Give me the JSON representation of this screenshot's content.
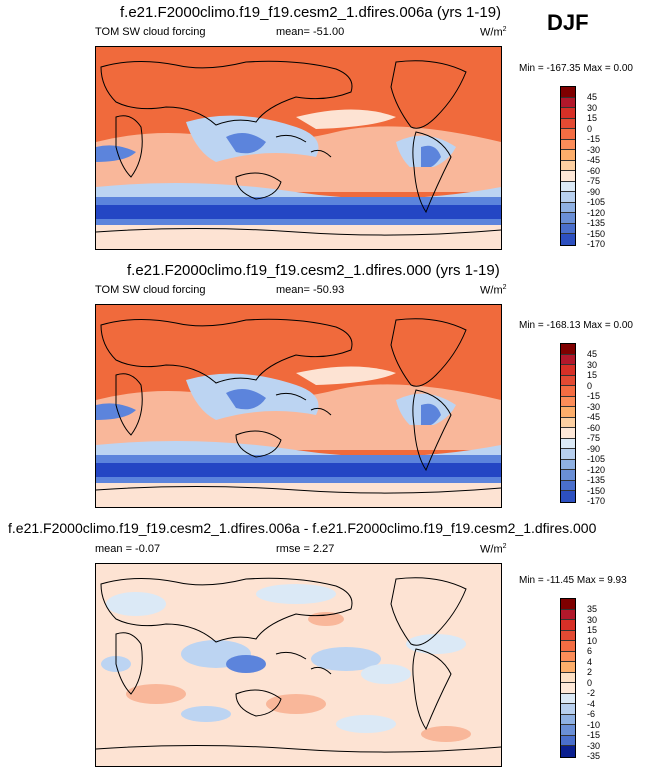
{
  "season": "DJF",
  "panels": [
    {
      "title": "f.e21.F2000climo.f19_f19.cesm2_1.dfires.006a (yrs 1-19)",
      "variable": "TOM SW cloud forcing",
      "stats": "mean= -51.00",
      "units": "W/m",
      "units_sup": "2",
      "minmax": "Min = -167.35 Max =    0.00",
      "colorbar_labels": [
        "45",
        "30",
        "15",
        "0",
        "-15",
        "-30",
        "-45",
        "-60",
        "-75",
        "-90",
        "-105",
        "-120",
        "-135",
        "-150",
        "-170"
      ],
      "colorbar_colors": [
        "#7f0000",
        "#b2182b",
        "#d73027",
        "#e34a33",
        "#f46d43",
        "#fc8d59",
        "#fdae6b",
        "#fdd0a2",
        "#fee8d8",
        "#dbe9f6",
        "#b8d0ef",
        "#8fb1e3",
        "#6a8fd6",
        "#4a6fcc",
        "#2d50c0",
        "#1c33a8"
      ]
    },
    {
      "title": "f.e21.F2000climo.f19_f19.cesm2_1.dfires.000 (yrs 1-19)",
      "variable": "TOM SW cloud forcing",
      "stats": "mean= -50.93",
      "units": "W/m",
      "units_sup": "2",
      "minmax": "Min = -168.13 Max =    0.00",
      "colorbar_labels": [
        "45",
        "30",
        "15",
        "0",
        "-15",
        "-30",
        "-45",
        "-60",
        "-75",
        "-90",
        "-105",
        "-120",
        "-135",
        "-150",
        "-170"
      ],
      "colorbar_colors": [
        "#7f0000",
        "#b2182b",
        "#d73027",
        "#e34a33",
        "#f46d43",
        "#fc8d59",
        "#fdae6b",
        "#fdd0a2",
        "#fee8d8",
        "#dbe9f6",
        "#b8d0ef",
        "#8fb1e3",
        "#6a8fd6",
        "#4a6fcc",
        "#2d50c0",
        "#1c33a8"
      ]
    },
    {
      "title": "f.e21.F2000climo.f19_f19.cesm2_1.dfires.006a - f.e21.F2000climo.f19_f19.cesm2_1.dfires.000",
      "mean": "mean =  -0.07",
      "stats": "rmse =   2.27",
      "units": "W/m",
      "units_sup": "2",
      "minmax": "Min = -11.45 Max =   9.93",
      "colorbar_labels": [
        "35",
        "30",
        "15",
        "10",
        "6",
        "4",
        "2",
        "0",
        "-2",
        "-4",
        "-6",
        "-10",
        "-15",
        "-30",
        "-35"
      ],
      "colorbar_colors": [
        "#7f0000",
        "#b2182b",
        "#d73027",
        "#e34a33",
        "#f46d43",
        "#fc8d59",
        "#fdae6b",
        "#fde0c5",
        "#fee8d8",
        "#dbe9f6",
        "#b8d0ef",
        "#8fb1e3",
        "#6a8fd6",
        "#4a6fcc",
        "#2d50c0",
        "#0a1f8f"
      ]
    }
  ],
  "map_colors": {
    "orange": "#f06a3c",
    "light_orange": "#f9b79a",
    "pale": "#fde3d3",
    "light_blue": "#bcd4f2",
    "blue": "#5c84dc",
    "dark_blue": "#2446c4"
  }
}
